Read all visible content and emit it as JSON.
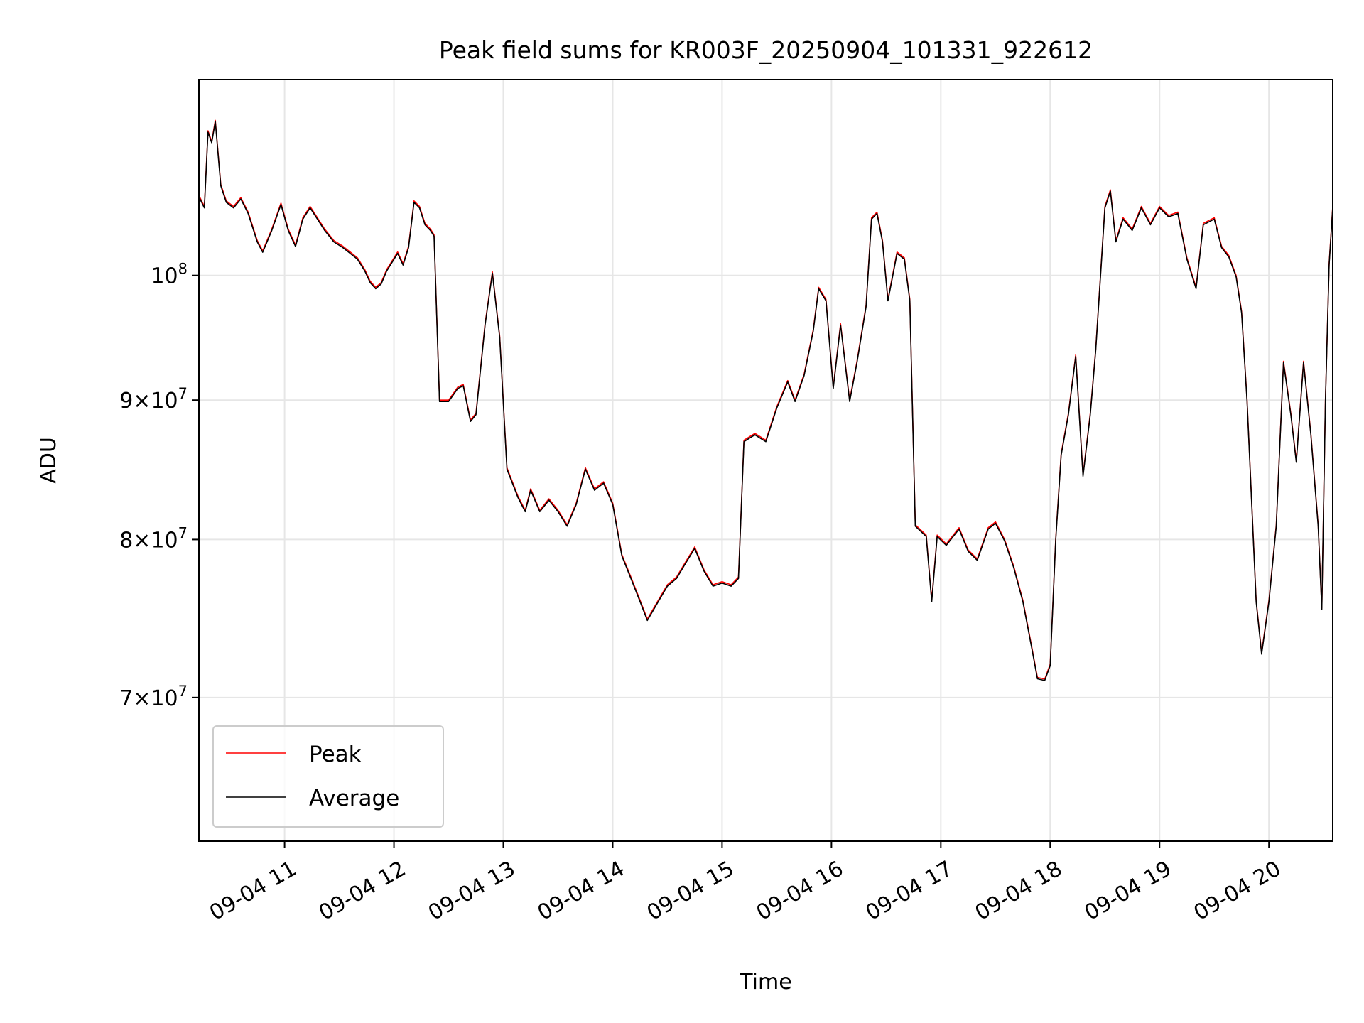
{
  "chart_data": {
    "type": "line",
    "title": "Peak field sums for KR003F_20250904_101331_922612",
    "xlabel": "Time",
    "ylabel": "ADU",
    "yscale": "log",
    "xlim": [
      "2025-09-04 10:13",
      "2025-09-04 20:35"
    ],
    "ylim": [
      62000000,
      118000000
    ],
    "grid": true,
    "legend": "lower-left",
    "x_ticks": [
      {
        "t": "2025-09-04 11:00",
        "label": "09-04 11"
      },
      {
        "t": "2025-09-04 12:00",
        "label": "09-04 12"
      },
      {
        "t": "2025-09-04 13:00",
        "label": "09-04 13"
      },
      {
        "t": "2025-09-04 14:00",
        "label": "09-04 14"
      },
      {
        "t": "2025-09-04 15:00",
        "label": "09-04 15"
      },
      {
        "t": "2025-09-04 16:00",
        "label": "09-04 16"
      },
      {
        "t": "2025-09-04 17:00",
        "label": "09-04 17"
      },
      {
        "t": "2025-09-04 18:00",
        "label": "09-04 18"
      },
      {
        "t": "2025-09-04 19:00",
        "label": "09-04 19"
      },
      {
        "t": "2025-09-04 20:00",
        "label": "09-04 20"
      }
    ],
    "y_ticks": [
      {
        "v": 100000000,
        "base": "10",
        "exp": "8",
        "coef": ""
      },
      {
        "v": 90000000,
        "base": "10",
        "exp": "7",
        "coef": "9"
      },
      {
        "v": 80000000,
        "base": "10",
        "exp": "7",
        "coef": "8"
      },
      {
        "v": 70000000,
        "base": "10",
        "exp": "7",
        "coef": "7"
      }
    ],
    "series": [
      {
        "name": "Peak",
        "color": "#ff0000",
        "points": [
          [
            "2025-09-04 10:13",
            107000000
          ],
          [
            "2025-09-04 10:16",
            106000000
          ],
          [
            "2025-09-04 10:18",
            113000000
          ],
          [
            "2025-09-04 10:20",
            112000000
          ],
          [
            "2025-09-04 10:22",
            114000000
          ],
          [
            "2025-09-04 10:25",
            108000000
          ],
          [
            "2025-09-04 10:28",
            106500000
          ],
          [
            "2025-09-04 10:32",
            106000000
          ],
          [
            "2025-09-04 10:36",
            106800000
          ],
          [
            "2025-09-04 10:40",
            105500000
          ],
          [
            "2025-09-04 10:45",
            103000000
          ],
          [
            "2025-09-04 10:48",
            102100000
          ],
          [
            "2025-09-04 10:53",
            104000000
          ],
          [
            "2025-09-04 10:58",
            106300000
          ],
          [
            "2025-09-04 11:02",
            104000000
          ],
          [
            "2025-09-04 11:06",
            102600000
          ],
          [
            "2025-09-04 11:10",
            105000000
          ],
          [
            "2025-09-04 11:14",
            106000000
          ],
          [
            "2025-09-04 11:18",
            105000000
          ],
          [
            "2025-09-04 11:22",
            104000000
          ],
          [
            "2025-09-04 11:27",
            103000000
          ],
          [
            "2025-09-04 11:32",
            102500000
          ],
          [
            "2025-09-04 11:36",
            102000000
          ],
          [
            "2025-09-04 11:40",
            101500000
          ],
          [
            "2025-09-04 11:44",
            100500000
          ],
          [
            "2025-09-04 11:47",
            99500000
          ],
          [
            "2025-09-04 11:50",
            99000000
          ],
          [
            "2025-09-04 11:53",
            99400000
          ],
          [
            "2025-09-04 11:56",
            100500000
          ],
          [
            "2025-09-04 12:00",
            101500000
          ],
          [
            "2025-09-04 12:02",
            102000000
          ],
          [
            "2025-09-04 12:05",
            101000000
          ],
          [
            "2025-09-04 12:08",
            102500000
          ],
          [
            "2025-09-04 12:11",
            106500000
          ],
          [
            "2025-09-04 12:14",
            106000000
          ],
          [
            "2025-09-04 12:17",
            104500000
          ],
          [
            "2025-09-04 12:20",
            104000000
          ],
          [
            "2025-09-04 12:22",
            103500000
          ],
          [
            "2025-09-04 12:25",
            90000000
          ],
          [
            "2025-09-04 12:30",
            90000000
          ],
          [
            "2025-09-04 12:35",
            91000000
          ],
          [
            "2025-09-04 12:38",
            91200000
          ],
          [
            "2025-09-04 12:42",
            88500000
          ],
          [
            "2025-09-04 12:45",
            89000000
          ],
          [
            "2025-09-04 12:50",
            96000000
          ],
          [
            "2025-09-04 12:54",
            100300000
          ],
          [
            "2025-09-04 12:58",
            95000000
          ],
          [
            "2025-09-04 13:02",
            85000000
          ],
          [
            "2025-09-04 13:08",
            83000000
          ],
          [
            "2025-09-04 13:12",
            82000000
          ],
          [
            "2025-09-04 13:15",
            83500000
          ],
          [
            "2025-09-04 13:20",
            82000000
          ],
          [
            "2025-09-04 13:25",
            82800000
          ],
          [
            "2025-09-04 13:30",
            82000000
          ],
          [
            "2025-09-04 13:35",
            81000000
          ],
          [
            "2025-09-04 13:40",
            82500000
          ],
          [
            "2025-09-04 13:45",
            85000000
          ],
          [
            "2025-09-04 13:50",
            83500000
          ],
          [
            "2025-09-04 13:55",
            84000000
          ],
          [
            "2025-09-04 14:00",
            82500000
          ],
          [
            "2025-09-04 14:05",
            79000000
          ],
          [
            "2025-09-04 14:10",
            77500000
          ],
          [
            "2025-09-04 14:15",
            76000000
          ],
          [
            "2025-09-04 14:19",
            74800000
          ],
          [
            "2025-09-04 14:25",
            76000000
          ],
          [
            "2025-09-04 14:30",
            77000000
          ],
          [
            "2025-09-04 14:35",
            77500000
          ],
          [
            "2025-09-04 14:40",
            78500000
          ],
          [
            "2025-09-04 14:45",
            79500000
          ],
          [
            "2025-09-04 14:50",
            78000000
          ],
          [
            "2025-09-04 14:55",
            77000000
          ],
          [
            "2025-09-04 15:00",
            77200000
          ],
          [
            "2025-09-04 15:05",
            77000000
          ],
          [
            "2025-09-04 15:09",
            77500000
          ],
          [
            "2025-09-04 15:12",
            87000000
          ],
          [
            "2025-09-04 15:18",
            87500000
          ],
          [
            "2025-09-04 15:24",
            87000000
          ],
          [
            "2025-09-04 15:30",
            89500000
          ],
          [
            "2025-09-04 15:36",
            91500000
          ],
          [
            "2025-09-04 15:40",
            90000000
          ],
          [
            "2025-09-04 15:45",
            92000000
          ],
          [
            "2025-09-04 15:50",
            95500000
          ],
          [
            "2025-09-04 15:53",
            99000000
          ],
          [
            "2025-09-04 15:57",
            98000000
          ],
          [
            "2025-09-04 16:01",
            91000000
          ],
          [
            "2025-09-04 16:05",
            96000000
          ],
          [
            "2025-09-04 16:10",
            90000000
          ],
          [
            "2025-09-04 16:14",
            93000000
          ],
          [
            "2025-09-04 16:19",
            97500000
          ],
          [
            "2025-09-04 16:22",
            105000000
          ],
          [
            "2025-09-04 16:25",
            105500000
          ],
          [
            "2025-09-04 16:28",
            103000000
          ],
          [
            "2025-09-04 16:31",
            98000000
          ],
          [
            "2025-09-04 16:36",
            102000000
          ],
          [
            "2025-09-04 16:40",
            101500000
          ],
          [
            "2025-09-04 16:43",
            98000000
          ],
          [
            "2025-09-04 16:46",
            81000000
          ],
          [
            "2025-09-04 16:52",
            80300000
          ],
          [
            "2025-09-04 16:55",
            76000000
          ],
          [
            "2025-09-04 16:58",
            80300000
          ],
          [
            "2025-09-04 17:03",
            79700000
          ],
          [
            "2025-09-04 17:10",
            80800000
          ],
          [
            "2025-09-04 17:15",
            79300000
          ],
          [
            "2025-09-04 17:20",
            78700000
          ],
          [
            "2025-09-04 17:26",
            80800000
          ],
          [
            "2025-09-04 17:30",
            81200000
          ],
          [
            "2025-09-04 17:35",
            80000000
          ],
          [
            "2025-09-04 17:40",
            78200000
          ],
          [
            "2025-09-04 17:45",
            76000000
          ],
          [
            "2025-09-04 17:50",
            73000000
          ],
          [
            "2025-09-04 17:53",
            71200000
          ],
          [
            "2025-09-04 17:57",
            71100000
          ],
          [
            "2025-09-04 18:00",
            72000000
          ],
          [
            "2025-09-04 18:03",
            80000000
          ],
          [
            "2025-09-04 18:06",
            86000000
          ],
          [
            "2025-09-04 18:10",
            89000000
          ],
          [
            "2025-09-04 18:14",
            93500000
          ],
          [
            "2025-09-04 18:18",
            84500000
          ],
          [
            "2025-09-04 18:22",
            89000000
          ],
          [
            "2025-09-04 18:25",
            94000000
          ],
          [
            "2025-09-04 18:30",
            106000000
          ],
          [
            "2025-09-04 18:33",
            107500000
          ],
          [
            "2025-09-04 18:36",
            103000000
          ],
          [
            "2025-09-04 18:40",
            105000000
          ],
          [
            "2025-09-04 18:45",
            104000000
          ],
          [
            "2025-09-04 18:50",
            106000000
          ],
          [
            "2025-09-04 18:55",
            104500000
          ],
          [
            "2025-09-04 19:00",
            106000000
          ],
          [
            "2025-09-04 19:05",
            105200000
          ],
          [
            "2025-09-04 19:10",
            105500000
          ],
          [
            "2025-09-04 19:15",
            101500000
          ],
          [
            "2025-09-04 19:20",
            99000000
          ],
          [
            "2025-09-04 19:24",
            104500000
          ],
          [
            "2025-09-04 19:30",
            105000000
          ],
          [
            "2025-09-04 19:34",
            102500000
          ],
          [
            "2025-09-04 19:38",
            101700000
          ],
          [
            "2025-09-04 19:42",
            100000000
          ],
          [
            "2025-09-04 19:45",
            97000000
          ],
          [
            "2025-09-04 19:48",
            90000000
          ],
          [
            "2025-09-04 19:53",
            76000000
          ],
          [
            "2025-09-04 19:56",
            72700000
          ],
          [
            "2025-09-04 20:00",
            76000000
          ],
          [
            "2025-09-04 20:04",
            81000000
          ],
          [
            "2025-09-04 20:08",
            93000000
          ],
          [
            "2025-09-04 20:12",
            89000000
          ],
          [
            "2025-09-04 20:15",
            85500000
          ],
          [
            "2025-09-04 20:19",
            93000000
          ],
          [
            "2025-09-04 20:23",
            87500000
          ],
          [
            "2025-09-04 20:27",
            81000000
          ],
          [
            "2025-09-04 20:29",
            75500000
          ],
          [
            "2025-09-04 20:31",
            90000000
          ],
          [
            "2025-09-04 20:33",
            101000000
          ],
          [
            "2025-09-04 20:35",
            106000000
          ]
        ]
      },
      {
        "name": "Average",
        "color": "#000000",
        "points": []
      }
    ]
  }
}
